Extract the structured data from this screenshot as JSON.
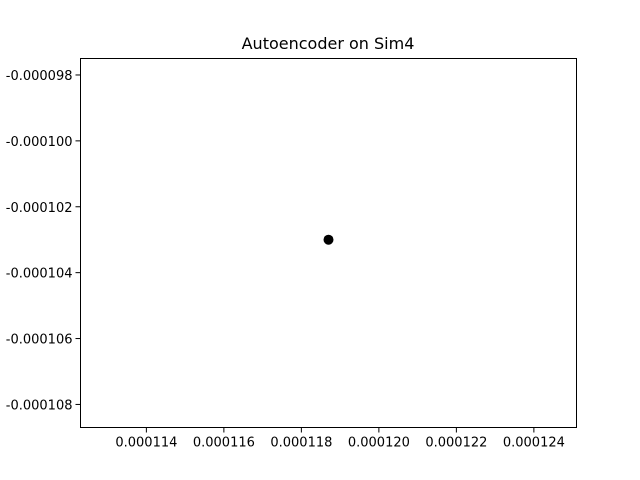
{
  "chart_data": {
    "type": "scatter",
    "title": "Autoencoder on Sim4",
    "xlabel": "",
    "ylabel": "",
    "xlim": [
      0.0001123,
      0.0001251
    ],
    "ylim": [
      -0.0001087,
      -9.75e-05
    ],
    "x_ticks": [
      0.000114,
      0.000116,
      0.000118,
      0.00012,
      0.000122,
      0.000124
    ],
    "x_tick_labels": [
      "0.000114",
      "0.000116",
      "0.000118",
      "0.000120",
      "0.000122",
      "0.000124"
    ],
    "y_ticks": [
      -9.8e-05,
      -0.0001,
      -0.000102,
      -0.000104,
      -0.000106,
      -0.000108
    ],
    "y_tick_labels": [
      "-0.000098",
      "-0.000100",
      "-0.000102",
      "-0.000104",
      "-0.000106",
      "-0.000108"
    ],
    "series": [
      {
        "x": [
          0.0001187
        ],
        "y": [
          -0.000103
        ],
        "color": "#000000"
      }
    ],
    "grid": false,
    "legend": "none"
  }
}
